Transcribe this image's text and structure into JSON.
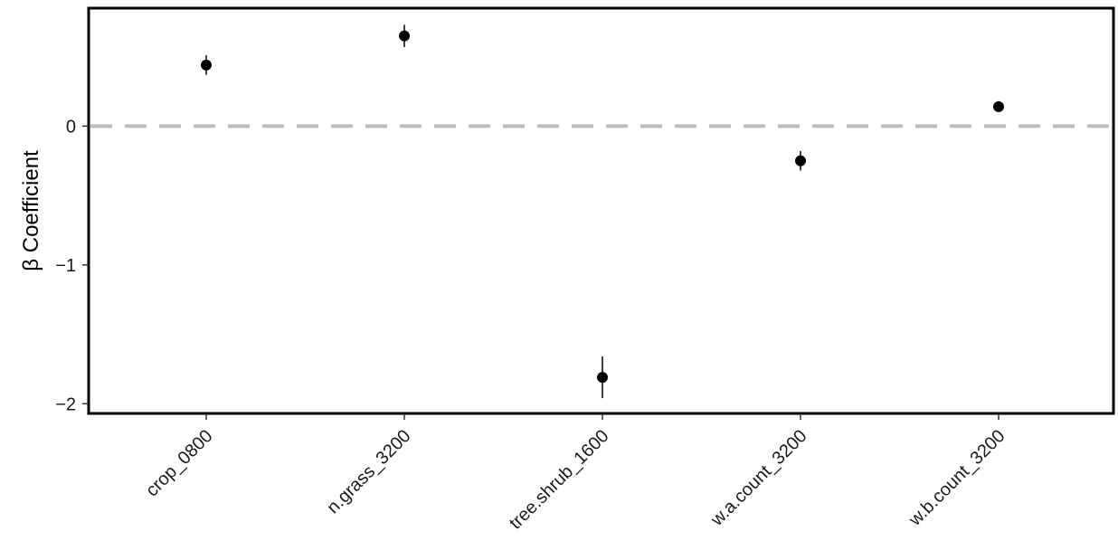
{
  "chart_data": {
    "type": "scatter",
    "title": "",
    "xlabel": "",
    "ylabel": "β Coefficient",
    "categories": [
      "crop_0800",
      "n.grass_3200",
      "tree.shrub_1600",
      "w.a.count_3200",
      "w.b.count_3200"
    ],
    "series": [
      {
        "values": [
          0.44,
          0.65,
          -1.81,
          -0.25,
          0.14
        ],
        "lower": [
          0.37,
          0.57,
          -1.96,
          -0.32,
          0.1
        ],
        "upper": [
          0.51,
          0.73,
          -1.66,
          -0.18,
          0.18
        ]
      }
    ],
    "ylim": [
      -2.07,
      0.85
    ],
    "yticks": [
      -2,
      -1,
      0
    ],
    "ytick_labels": [
      "−2",
      "−1",
      "0"
    ],
    "reference_line": {
      "y": 0,
      "style": "dashed",
      "color": "#bdbdbd"
    },
    "grid": false,
    "legend": "none",
    "point_color": "#000000"
  }
}
